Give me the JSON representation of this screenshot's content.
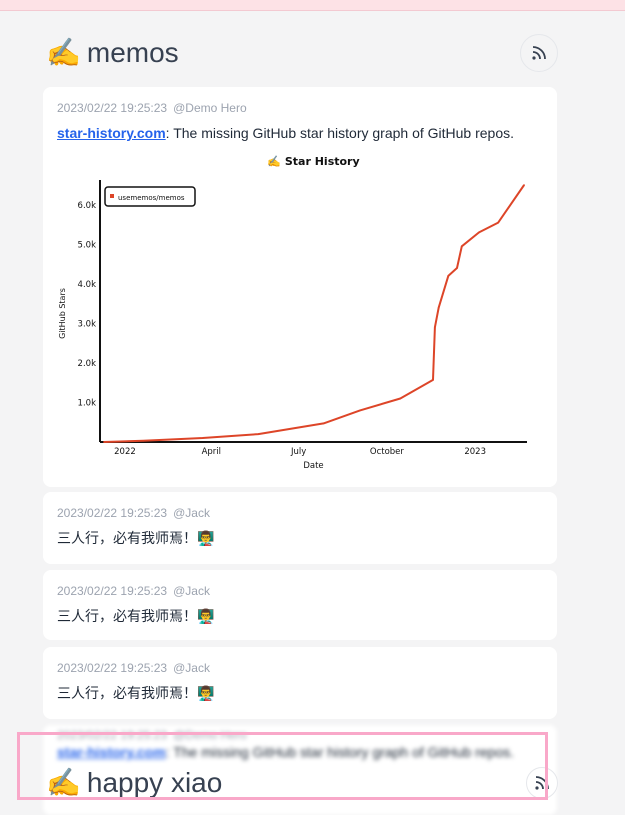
{
  "header": {
    "emoji": "✍️",
    "title": "memos",
    "rss_icon": "rss-icon"
  },
  "memos": [
    {
      "time": "2023/02/22 19:25:23",
      "author": "@Demo Hero",
      "link": "star-history.com",
      "text": ": The missing GitHub star history graph of GitHub repos."
    },
    {
      "time": "2023/02/22 19:25:23",
      "author": "@Jack",
      "text": "三人行，必有我师焉！👨‍🏫"
    },
    {
      "time": "2023/02/22 19:25:23",
      "author": "@Jack",
      "text": "三人行，必有我师焉！👨‍🏫"
    },
    {
      "time": "2023/02/22 19:25:23",
      "author": "@Jack",
      "text": "三人行，必有我师焉！👨‍🏫"
    },
    {
      "time": "2023/02/22 19:25:23",
      "author": "@Demo Hero",
      "link": "star-history.com",
      "text": ": The missing GitHub star history graph of GitHub repos."
    }
  ],
  "overlay_header": {
    "emoji": "✍️",
    "title": "happy xiao"
  },
  "chart_data": {
    "type": "line",
    "title": "✍️ Star History",
    "xlabel": "Date",
    "ylabel": "GitHub Stars",
    "x_ticks": [
      "2022",
      "April",
      "July",
      "October",
      "2023"
    ],
    "y_ticks": [
      "1.0k",
      "2.0k",
      "3.0k",
      "4.0k",
      "5.0k",
      "6.0k"
    ],
    "ylim": [
      0,
      6500
    ],
    "xlim": [
      "2021-12-06",
      "2023-02-24"
    ],
    "legend": "top-left",
    "series": [
      {
        "name": "usememos/memos",
        "color": "#dd4528",
        "x": [
          "2021-12-10",
          "2022-01-20",
          "2022-03-23",
          "2022-05-20",
          "2022-07-27",
          "2022-09-03",
          "2022-10-15",
          "2022-11-18",
          "2022-11-20",
          "2022-11-24",
          "2022-12-04",
          "2022-12-13",
          "2022-12-18",
          "2023-01-05",
          "2023-01-25",
          "2023-02-21"
        ],
        "y": [
          0,
          30,
          100,
          200,
          470,
          800,
          1100,
          1570,
          2900,
          3400,
          4200,
          4400,
          4950,
          5300,
          5550,
          6500
        ]
      }
    ]
  }
}
